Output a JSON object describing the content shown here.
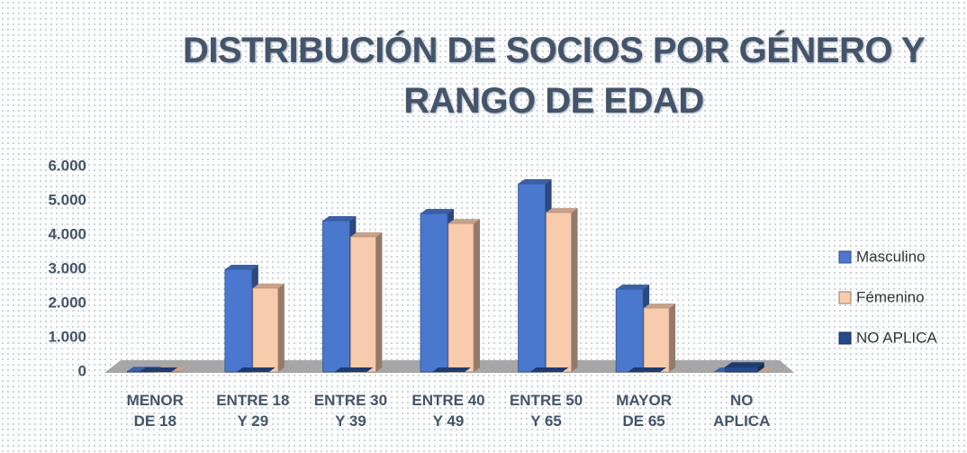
{
  "chart_data": {
    "type": "bar",
    "title": "DISTRIBUCIÓN DE SOCIOS POR GÉNERO Y RANGO DE EDAD",
    "categories": [
      "MENOR DE 18",
      "ENTRE 18 Y 29",
      "ENTRE 30 Y 39",
      "ENTRE 40 Y 49",
      "ENTRE 50 Y 65",
      "MAYOR DE 65",
      "NO APLICA"
    ],
    "series": [
      {
        "name": "Masculino",
        "color": "#4a78cf",
        "values": [
          20,
          3000,
          4420,
          4630,
          5500,
          2420,
          0
        ]
      },
      {
        "name": "Fémenino",
        "color": "#f8cbad",
        "values": [
          10,
          2450,
          3950,
          4340,
          4660,
          1870,
          0
        ]
      },
      {
        "name": "NO APLICA",
        "color": "#264a8c",
        "values": [
          0,
          0,
          0,
          0,
          0,
          0,
          150
        ]
      }
    ],
    "ylim": [
      0,
      6000
    ],
    "yticks": [
      0,
      {
        "value": 1000,
        "label": "1.000"
      },
      {
        "value": 2000,
        "label": "2.000"
      },
      {
        "value": 3000,
        "label": "3.000"
      },
      {
        "value": 4000,
        "label": "4.000"
      },
      {
        "value": 5000,
        "label": "5.000"
      },
      {
        "value": 6000,
        "label": "6.000"
      }
    ],
    "legend": "right"
  }
}
